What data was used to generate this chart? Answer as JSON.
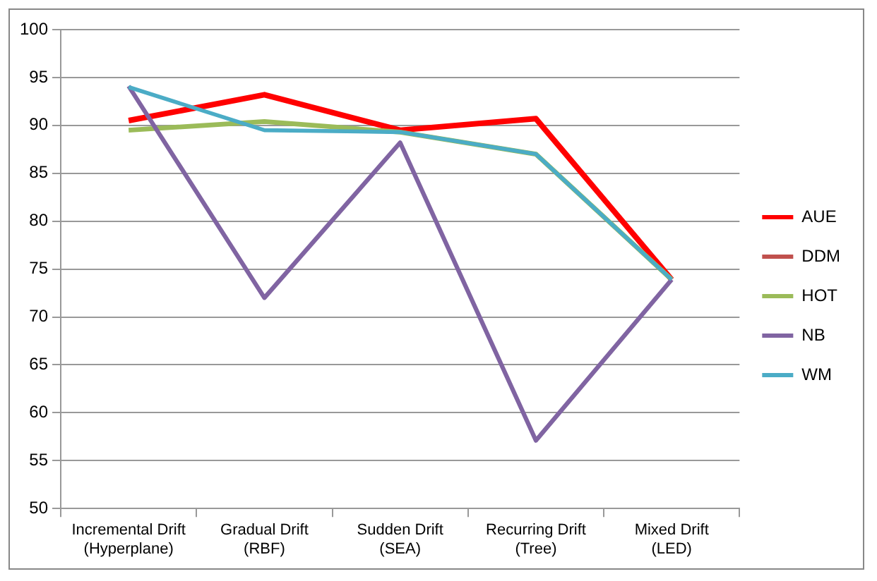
{
  "chart_data": {
    "type": "line",
    "categories": [
      [
        "Incremental Drift",
        "(Hyperplane)"
      ],
      [
        "Gradual Drift",
        "(RBF)"
      ],
      [
        "Sudden Drift",
        "(SEA)"
      ],
      [
        "Recurring Drift",
        "(Tree)"
      ],
      [
        "Mixed Drift",
        "(LED)"
      ]
    ],
    "series": [
      {
        "name": "AUE",
        "color": "#ff0000",
        "values": [
          90.5,
          93.2,
          89.5,
          90.7,
          73.9
        ]
      },
      {
        "name": "DDM",
        "color": "#c0504d",
        "values": [
          null,
          null,
          null,
          null,
          null
        ]
      },
      {
        "name": "HOT",
        "color": "#9bbb59",
        "values": [
          89.5,
          90.4,
          89.3,
          87.0,
          73.9
        ]
      },
      {
        "name": "NB",
        "color": "#8064a2",
        "values": [
          94.1,
          72.0,
          88.2,
          57.1,
          73.9
        ]
      },
      {
        "name": "WM",
        "color": "#4bacc6",
        "values": [
          94.0,
          89.5,
          89.3,
          87.0,
          73.9
        ]
      }
    ],
    "ylim": [
      50,
      100
    ],
    "yticks": [
      50,
      55,
      60,
      65,
      70,
      75,
      80,
      85,
      90,
      95,
      100
    ],
    "grid": "y",
    "legend": "right",
    "marker": "none",
    "line_style": "solid"
  }
}
